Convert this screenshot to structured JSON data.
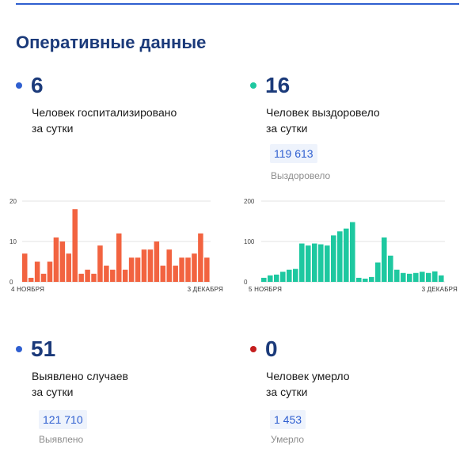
{
  "page": {
    "title": "Оперативные данные"
  },
  "hospitalized": {
    "value": "6",
    "line1": "Человек госпитализировано",
    "line2": "за сутки",
    "dot_color": "#2f5fd0"
  },
  "recovered": {
    "value": "16",
    "line1": "Человек выздоровело",
    "line2": "за сутки",
    "total": "119 613",
    "total_label": "Выздоровело",
    "dot_color": "#1ec8a0"
  },
  "cases": {
    "value": "51",
    "line1": "Выявлено случаев",
    "line2": "за сутки",
    "total": "121 710",
    "total_label": "Выявлено",
    "dot_color": "#2f5fd0"
  },
  "deaths": {
    "value": "0",
    "line1": "Человек умерло",
    "line2": "за сутки",
    "total": "1 453",
    "total_label": "Умерло",
    "dot_color": "#c41e1e"
  },
  "chart_data": [
    {
      "type": "bar",
      "x_start_label": "4 НОЯБРЯ",
      "x_end_label": "3 ДЕКАБРЯ",
      "yticks": [
        0,
        10,
        20
      ],
      "ylim": [
        0,
        20
      ],
      "grid": true,
      "color": "#f26340",
      "values": [
        7,
        1,
        5,
        2,
        5,
        11,
        10,
        7,
        18,
        2,
        3,
        2,
        9,
        4,
        3,
        12,
        3,
        6,
        6,
        8,
        8,
        10,
        4,
        8,
        4,
        6,
        6,
        7,
        12,
        6
      ]
    },
    {
      "type": "bar",
      "x_start_label": "5 НОЯБРЯ",
      "x_end_label": "3 ДЕКАБРЯ",
      "yticks": [
        0,
        100,
        200
      ],
      "ylim": [
        0,
        200
      ],
      "grid": true,
      "color": "#1ec8a0",
      "values": [
        10,
        16,
        18,
        25,
        30,
        32,
        95,
        90,
        95,
        93,
        90,
        115,
        125,
        132,
        148,
        10,
        8,
        12,
        48,
        110,
        65,
        30,
        22,
        20,
        22,
        25,
        22,
        26,
        16
      ]
    }
  ]
}
